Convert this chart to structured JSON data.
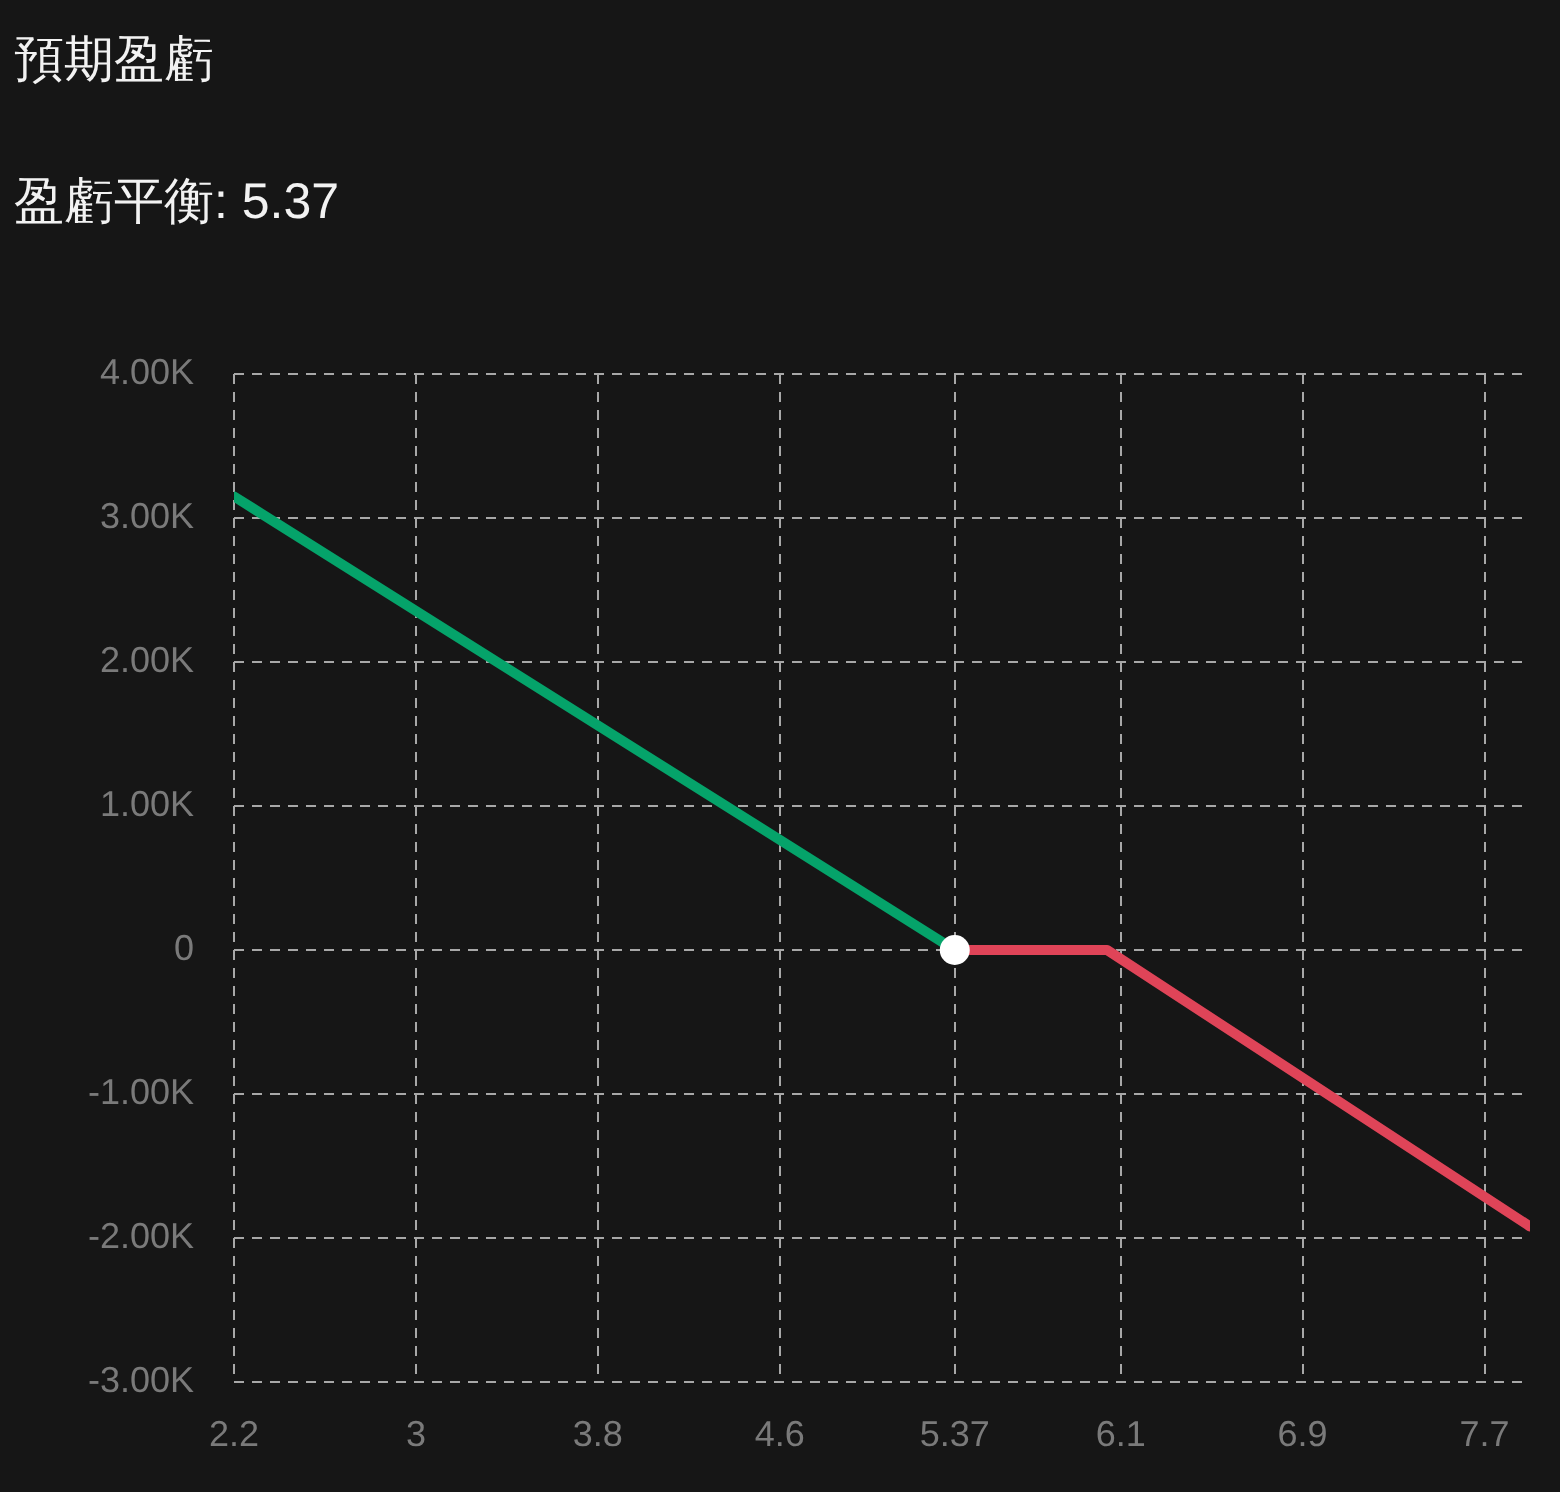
{
  "chart_data": {
    "type": "line",
    "title": "預期盈虧",
    "subtitle": "盈虧平衡: 5.37",
    "series": [
      {
        "color": "#05a36a",
        "x": [
          2.2,
          5.37
        ],
        "values": [
          3150,
          0
        ]
      },
      {
        "color": "#df4458",
        "x": [
          5.37,
          6.04,
          7.9
        ],
        "values": [
          0,
          0,
          -1920
        ]
      },
      {
        "type": "scatter",
        "color": "#ffffff",
        "marker": "circle",
        "x": [
          5.37
        ],
        "values": [
          0
        ]
      }
    ],
    "xlim": [
      2.2,
      7.9
    ],
    "xticks": [
      2.2,
      3,
      3.8,
      4.6,
      5.37,
      6.1,
      6.9,
      7.7
    ],
    "ylim": [
      -3000,
      4000
    ],
    "yticks": [
      {
        "value": -3000,
        "label": "-3.00K"
      },
      {
        "value": -2000,
        "label": "-2.00K"
      },
      {
        "value": -1000,
        "label": "-1.00K"
      },
      0,
      {
        "value": 1000,
        "label": "1.00K"
      },
      {
        "value": 2000,
        "label": "2.00K"
      },
      {
        "value": 3000,
        "label": "3.00K"
      },
      {
        "value": 4000,
        "label": "4.00K"
      }
    ],
    "grid": true,
    "line_style": "solid"
  }
}
